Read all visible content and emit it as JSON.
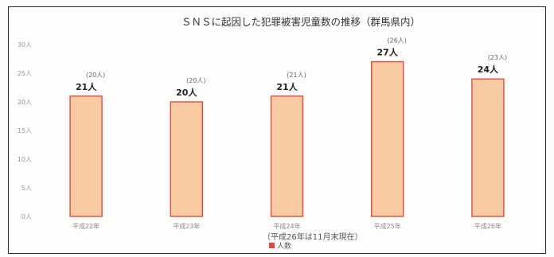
{
  "chart_data": {
    "type": "bar",
    "title": "ＳＮＳに起因した犯罪被害児童数の推移（群馬県内）",
    "categories": [
      "平成22年",
      "平成23年",
      "平成24年",
      "平成25年",
      "平成26年"
    ],
    "series": [
      {
        "name": "人数",
        "values": [
          21,
          20,
          21,
          27,
          24
        ]
      }
    ],
    "data_labels": [
      "21人",
      "20人",
      "21人",
      "27人",
      "24人"
    ],
    "secondary_labels": [
      "(20人)",
      "(20人)",
      "(21人)",
      "(26人)",
      "(23人)"
    ],
    "y_ticks": [
      "0人",
      "5人",
      "10人",
      "15人",
      "20人",
      "25人",
      "30人"
    ],
    "ylim": [
      0,
      30
    ],
    "grid": false,
    "legend": {
      "position": "bottom-center",
      "label": "人数"
    },
    "note": "（平成26年は11月末現在）",
    "colors": {
      "bar_fill": "#f9cba3",
      "bar_stroke": "#e34a3c",
      "legend_mark": "#e34a3c"
    }
  }
}
